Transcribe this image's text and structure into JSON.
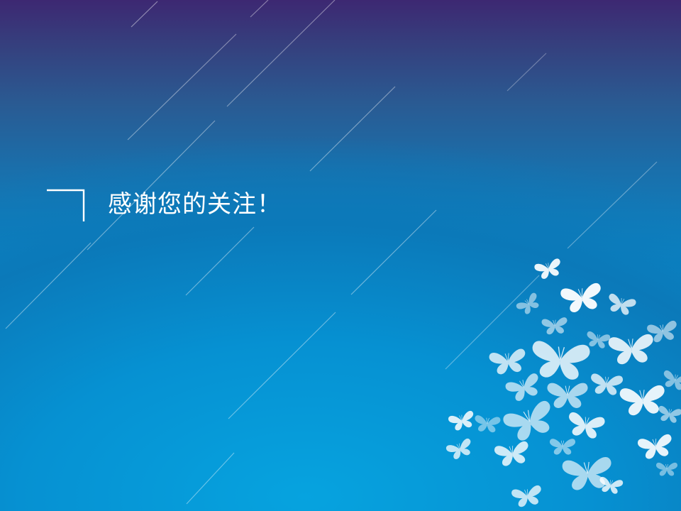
{
  "slide": {
    "closing_text": "感谢您的关注！"
  },
  "decor": {
    "corner_bracket": "corner-bracket-icon",
    "streaks": "diagonal-light-streaks",
    "butterflies": "butterfly-cluster-icon"
  },
  "colors": {
    "top": "#3d2872",
    "middle": "#1a6fab",
    "bottom": "#08a0dd",
    "text": "#ffffff"
  }
}
